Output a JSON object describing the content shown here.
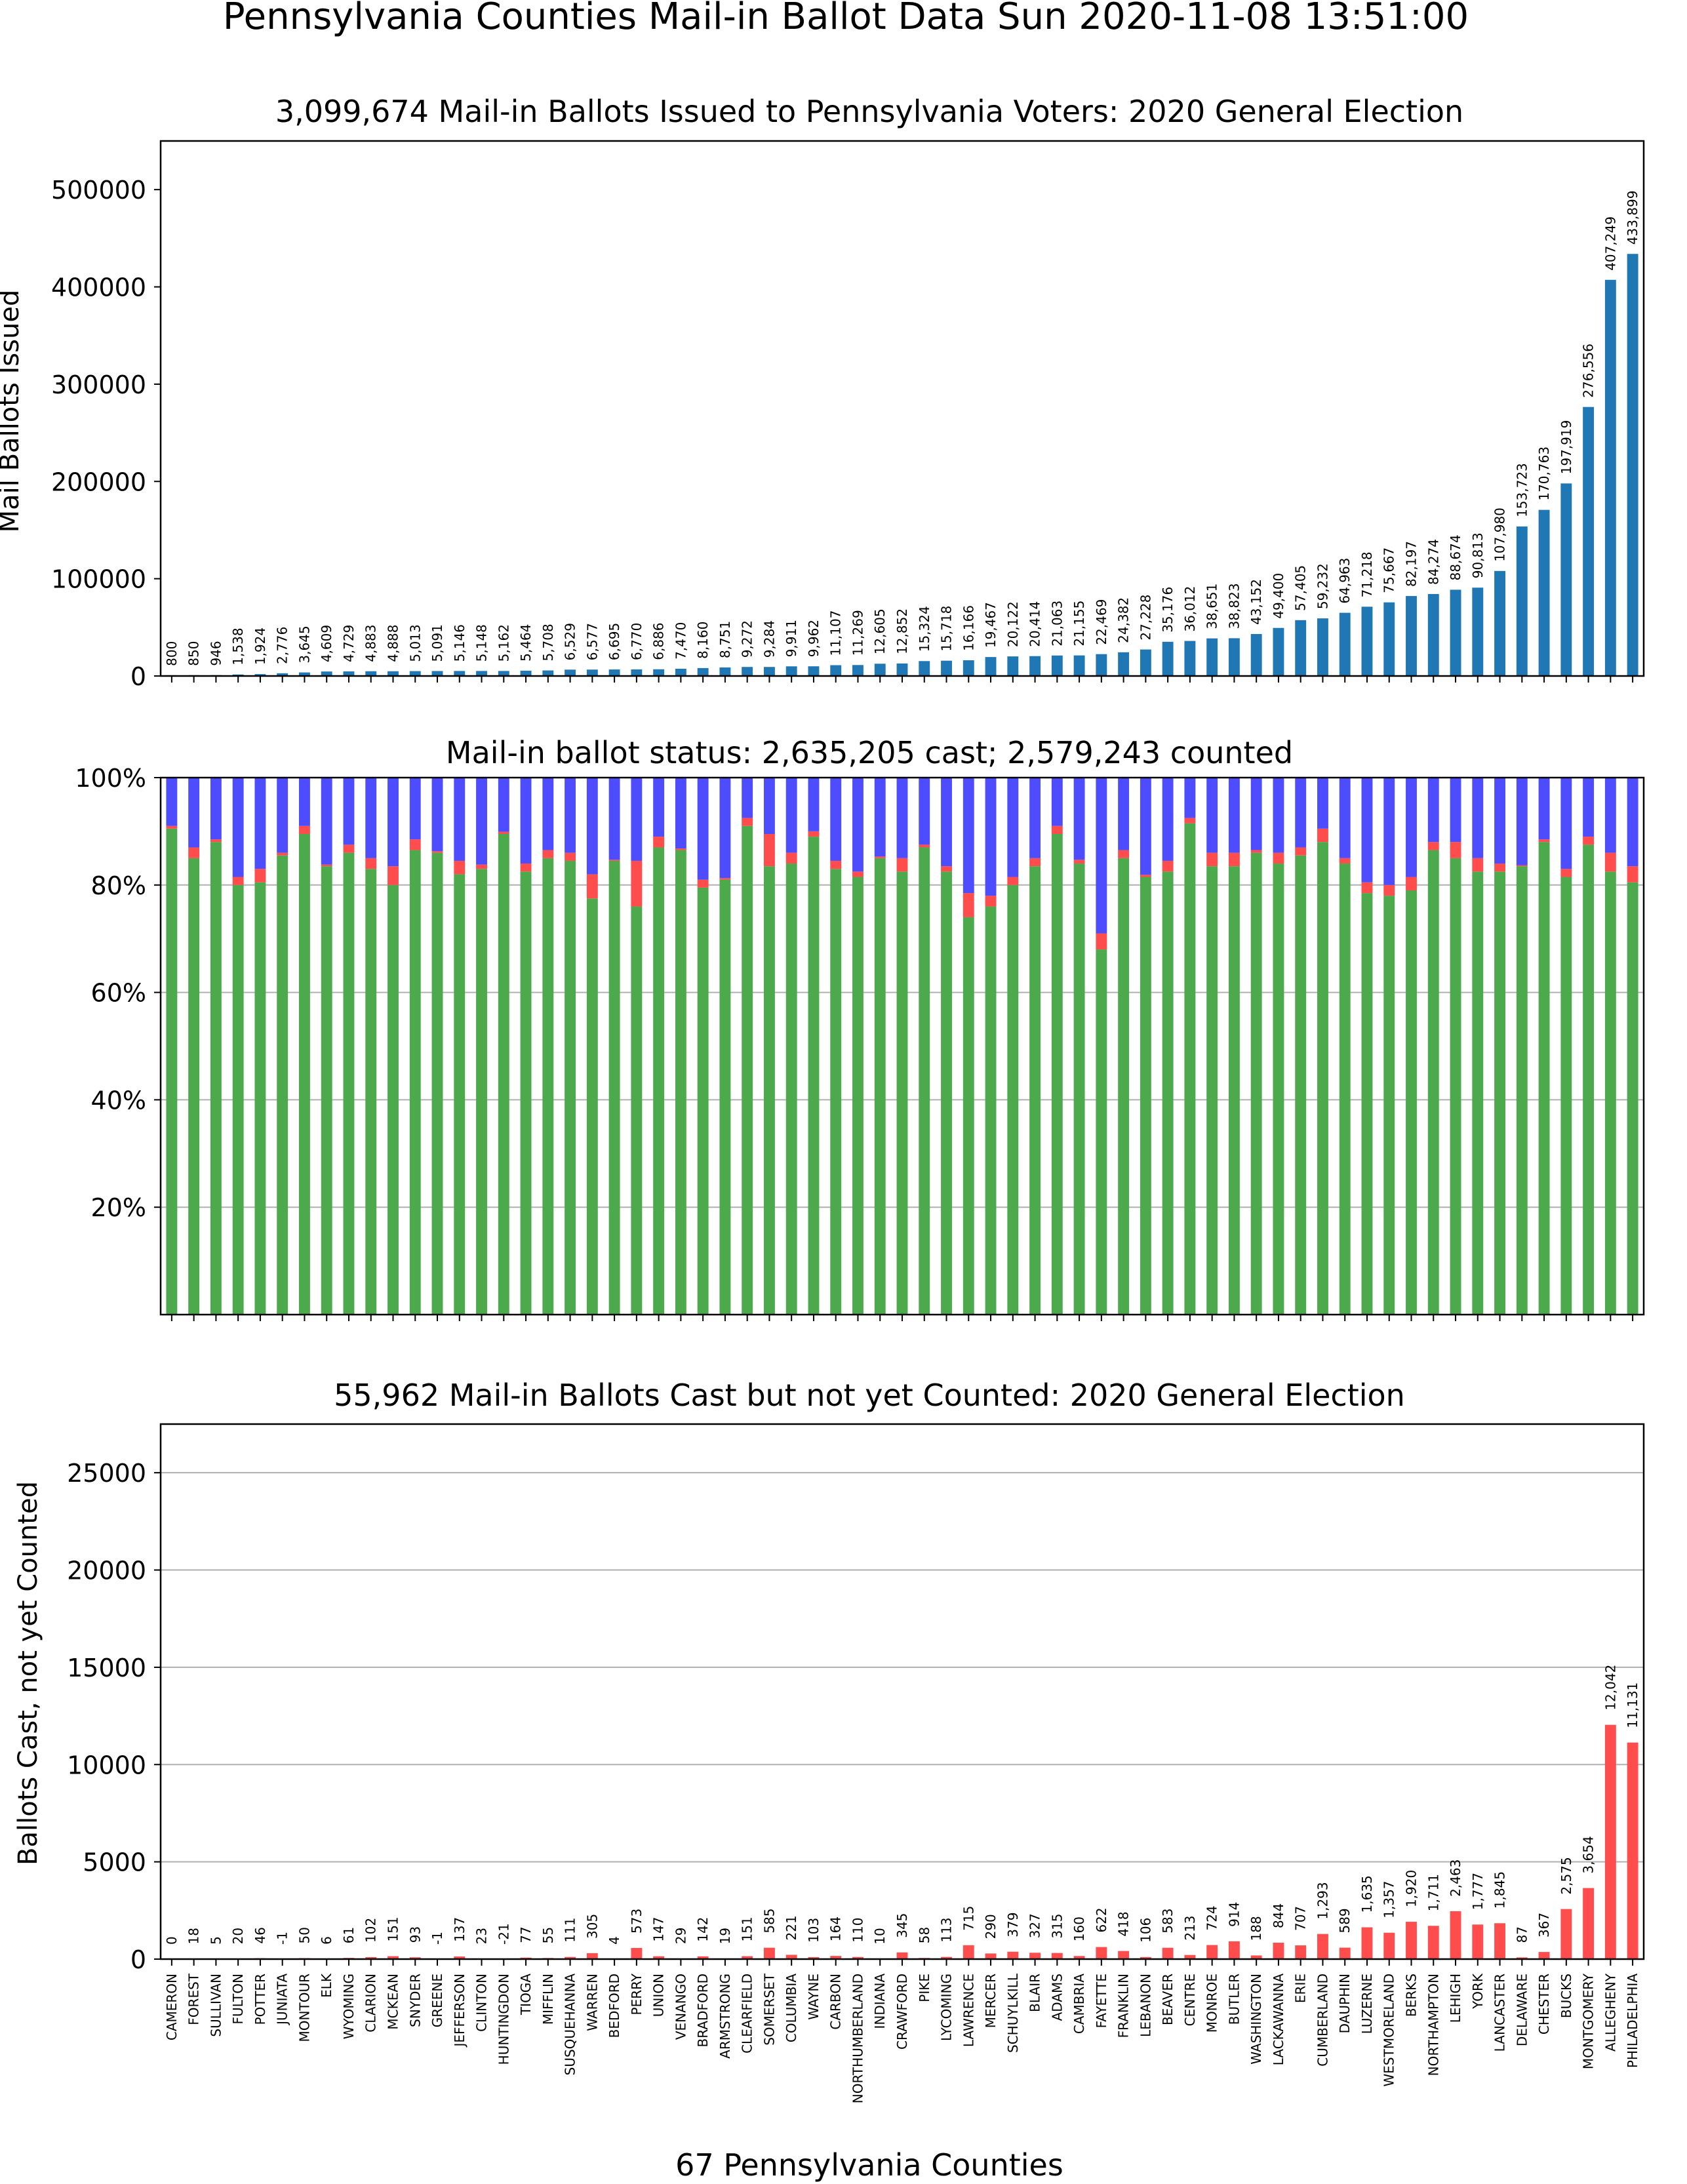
{
  "figure": {
    "suptitle": "Pennsylvania Counties Mail-in Ballot Data Sun 2020-11-08 13:51:00",
    "xlabel": "67 Pennsylvania Counties"
  },
  "colors": {
    "issued": "#1f77b4",
    "counted": "#4caa4c",
    "not_counted": "#ff4d4d",
    "not_cast": "#4d4dff"
  },
  "chart_data": [
    {
      "type": "bar",
      "title": "3,099,674 Mail-in Ballots Issued to Pennsylvania Voters: 2020 General Election",
      "ylabel": "Mail Ballots Issued",
      "ylim": [
        0,
        550000
      ],
      "yticks": [
        0,
        100000,
        200000,
        300000,
        400000,
        500000
      ],
      "grid": false,
      "n_bars": 67,
      "values": [
        800,
        850,
        946,
        1538,
        1924,
        2776,
        3645,
        4609,
        4729,
        4883,
        4888,
        5013,
        5091,
        5146,
        5148,
        5162,
        5464,
        5708,
        6529,
        6577,
        6695,
        6770,
        6886,
        7470,
        8160,
        8751,
        9272,
        9284,
        9911,
        9962,
        11107,
        11269,
        12605,
        12852,
        15324,
        15718,
        16166,
        19467,
        20122,
        20414,
        21063,
        21155,
        22469,
        24382,
        27228,
        35176,
        36012,
        38651,
        38823,
        43152,
        49400,
        57405,
        59232,
        64963,
        71218,
        75667,
        82197,
        84274,
        88674,
        90813,
        107980,
        153723,
        170763,
        197919,
        276556,
        407249,
        433899
      ],
      "labels": [
        "800",
        "850",
        "946",
        "1,538",
        "1,924",
        "2,776",
        "3,645",
        "4,609",
        "4,729",
        "4,883",
        "4,888",
        "5,013",
        "5,091",
        "5,146",
        "5,148",
        "5,162",
        "5,464",
        "5,708",
        "6,529",
        "6,577",
        "6,695",
        "6,770",
        "6,886",
        "7,470",
        "8,160",
        "8,751",
        "9,272",
        "9,284",
        "9,911",
        "9,962",
        "11,107",
        "11,269",
        "12,605",
        "12,852",
        "15,324",
        "15,718",
        "16,166",
        "19,467",
        "20,122",
        "20,414",
        "21,063",
        "21,155",
        "22,469",
        "24,382",
        "27,228",
        "35,176",
        "36,012",
        "38,651",
        "38,823",
        "43,152",
        "49,400",
        "57,405",
        "59,232",
        "64,963",
        "71,218",
        "75,667",
        "82,197",
        "84,274",
        "88,674",
        "90,813",
        "107,980",
        "153,723",
        "170,763",
        "197,919",
        "276,556",
        "407,249",
        "433,899"
      ]
    },
    {
      "type": "bar",
      "stacked": true,
      "title": "Mail-in ballot status: 2,635,205 cast; 2,579,243 counted",
      "ylim": [
        0,
        100
      ],
      "yticks": [
        20,
        40,
        60,
        80,
        100
      ],
      "ytick_labels": [
        "20%",
        "40%",
        "60%",
        "80%",
        "100%"
      ],
      "grid": true,
      "n_bars": 67,
      "series": [
        {
          "key": "counted",
          "values": [
            90.5,
            85,
            88,
            80,
            80.5,
            85.5,
            89.5,
            83.5,
            86,
            83,
            80,
            86.5,
            86,
            82,
            83,
            89.5,
            82.5,
            85,
            84.5,
            77.5,
            84.5,
            76,
            87,
            86.5,
            79.5,
            81,
            91,
            83.5,
            84,
            89,
            83,
            81.5,
            85,
            82.5,
            87,
            82.5,
            74,
            76,
            80,
            83.5,
            89.5,
            84,
            68,
            85,
            81.5,
            82.5,
            91.5,
            83.5,
            83.5,
            86,
            84,
            85.5,
            88,
            84,
            78.5,
            78,
            79,
            86.5,
            85,
            82.5,
            82.5,
            83.5,
            88,
            81.5,
            87.5,
            82.5,
            80.5
          ]
        },
        {
          "key": "not_counted",
          "values": [
            0.5,
            2,
            0.5,
            1.5,
            2.5,
            0.5,
            1.5,
            0.3,
            1.5,
            2,
            3.5,
            2,
            0.3,
            2.5,
            0.8,
            0.4,
            1.5,
            1.5,
            1.5,
            4.5,
            0.2,
            8.5,
            2,
            0.3,
            1.5,
            0.3,
            1.5,
            6,
            2,
            1,
            1.5,
            1,
            0.3,
            2.5,
            0.5,
            1,
            4.5,
            2,
            1.5,
            1.5,
            1.5,
            0.7,
            3,
            1.5,
            0.4,
            2,
            1,
            2.5,
            2.5,
            0.5,
            2,
            1.5,
            2.5,
            1,
            2,
            2,
            2.5,
            1.5,
            3,
            2.5,
            1.5,
            0.2,
            0.5,
            1.5,
            1.5,
            3.5,
            3
          ]
        },
        {
          "key": "not_cast",
          "values": [
            9,
            13,
            11.5,
            18.5,
            17,
            14,
            9,
            16.2,
            12.5,
            15,
            16.5,
            11.5,
            13.7,
            15.5,
            16.2,
            10.1,
            16,
            13.5,
            14,
            18,
            15.3,
            15.5,
            11,
            13.2,
            19,
            18.7,
            7.5,
            10.5,
            14,
            10,
            15.5,
            17.5,
            14.7,
            15,
            12.5,
            16.5,
            21.5,
            22,
            18.5,
            15,
            9,
            15.3,
            29,
            13.5,
            18.1,
            15.5,
            7.5,
            14,
            14,
            13.5,
            14,
            13,
            9.5,
            15,
            19.5,
            20,
            18.5,
            12,
            12,
            15,
            16,
            16.3,
            11.5,
            17,
            11,
            14,
            16.5
          ]
        }
      ]
    },
    {
      "type": "bar",
      "title": "55,962 Mail-in Ballots Cast but not yet Counted: 2020 General Election",
      "ylabel": "Ballots Cast, not yet Counted",
      "ylim": [
        0,
        27500
      ],
      "yticks": [
        0,
        5000,
        10000,
        15000,
        20000,
        25000
      ],
      "grid": true,
      "n_bars": 67,
      "values": [
        0,
        18,
        5,
        20,
        46,
        -1,
        50,
        6,
        61,
        102,
        151,
        93,
        -1,
        137,
        23,
        -21,
        77,
        55,
        111,
        305,
        4,
        573,
        147,
        29,
        142,
        19,
        151,
        585,
        221,
        103,
        164,
        110,
        10,
        345,
        58,
        113,
        715,
        290,
        379,
        327,
        315,
        160,
        622,
        418,
        106,
        583,
        213,
        724,
        914,
        188,
        844,
        707,
        1293,
        589,
        1635,
        1357,
        1920,
        1711,
        2463,
        1777,
        1845,
        87,
        367,
        2575,
        3654,
        12042,
        11131
      ],
      "labels": [
        "0",
        "18",
        "5",
        "20",
        "46",
        "-1",
        "50",
        "6",
        "61",
        "102",
        "151",
        "93",
        "-1",
        "137",
        "23",
        "-21",
        "77",
        "55",
        "111",
        "305",
        "4",
        "573",
        "147",
        "29",
        "142",
        "19",
        "151",
        "585",
        "221",
        "103",
        "164",
        "110",
        "10",
        "345",
        "58",
        "113",
        "715",
        "290",
        "379",
        "327",
        "315",
        "160",
        "622",
        "418",
        "106",
        "583",
        "213",
        "724",
        "914",
        "188",
        "844",
        "707",
        "1,293",
        "589",
        "1,635",
        "1,357",
        "1,920",
        "1,711",
        "2,463",
        "1,777",
        "1,845",
        "87",
        "367",
        "2,575",
        "3,654",
        "12,042",
        "11,131"
      ],
      "categories": [
        "CAMERON",
        "FOREST",
        "SULLIVAN",
        "FULTON",
        "POTTER",
        "JUNIATA",
        "MONTOUR",
        "ELK",
        "WYOMING",
        "CLARION",
        "MCKEAN",
        "SNYDER",
        "GREENE",
        "JEFFERSON",
        "CLINTON",
        "HUNTINGDON",
        "TIOGA",
        "MIFFLIN",
        "SUSQUEHANNA",
        "WARREN",
        "BEDFORD",
        "PERRY",
        "UNION",
        "VENANGO",
        "BRADFORD",
        "ARMSTRONG",
        "CLEARFIELD",
        "SOMERSET",
        "COLUMBIA",
        "WAYNE",
        "CARBON",
        "NORTHUMBERLAND",
        "INDIANA",
        "CRAWFORD",
        "PIKE",
        "LYCOMING",
        "LAWRENCE",
        "MERCER",
        "SCHUYLKILL",
        "BLAIR",
        "ADAMS",
        "CAMBRIA",
        "FAYETTE",
        "FRANKLIN",
        "LEBANON",
        "BEAVER",
        "CENTRE",
        "MONROE",
        "BUTLER",
        "WASHINGTON",
        "LACKAWANNA",
        "ERIE",
        "CUMBERLAND",
        "DAUPHIN",
        "LUZERNE",
        "WESTMORELAND",
        "BERKS",
        "NORTHAMPTON",
        "LEHIGH",
        "YORK",
        "LANCASTER",
        "DELAWARE",
        "CHESTER",
        "BUCKS",
        "MONTGOMERY",
        "ALLEGHENY",
        "PHILADELPHIA"
      ]
    }
  ]
}
